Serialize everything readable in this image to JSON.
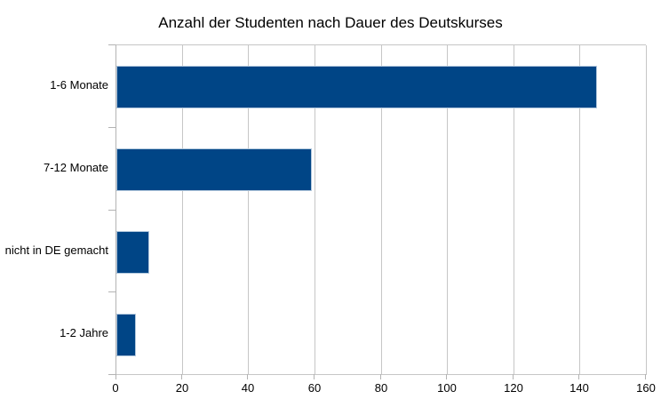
{
  "chart_data": {
    "type": "bar",
    "orientation": "horizontal",
    "title": "Anzahl der Studenten nach Dauer des Deutskurses",
    "categories": [
      "1-6 Monate",
      "7-12 Monate",
      "nicht in DE gemacht",
      "1-2 Jahre"
    ],
    "values": [
      145,
      59,
      10,
      6
    ],
    "xlabel": "",
    "ylabel": "",
    "xlim": [
      0,
      160
    ],
    "xticks": [
      0,
      20,
      40,
      60,
      80,
      100,
      120,
      140,
      160
    ],
    "grid": true,
    "legend": false,
    "colors": {
      "bar_fill": "#004586",
      "bar_border": "#b3c8dd",
      "gridline": "#c6c6c6",
      "category_axis_line": "#b3b3b3",
      "text": "#000000",
      "background": "#ffffff"
    }
  }
}
